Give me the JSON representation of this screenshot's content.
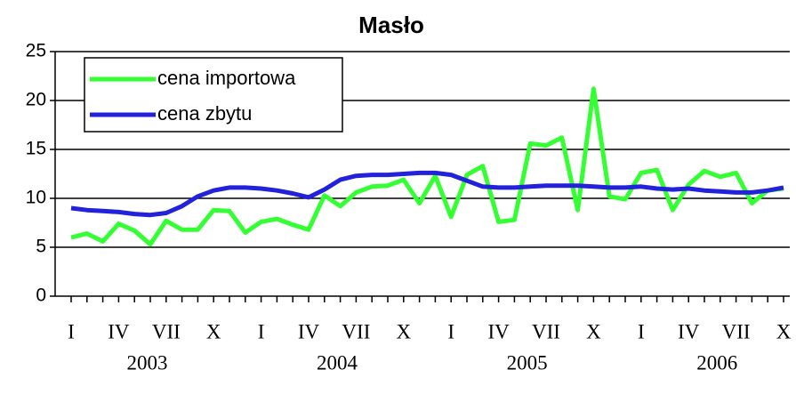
{
  "chart_data": {
    "type": "line",
    "title": "Masło",
    "categories": [
      "I",
      null,
      null,
      "IV",
      null,
      null,
      "VII",
      null,
      null,
      "X",
      null,
      null,
      "I",
      null,
      null,
      "IV",
      null,
      null,
      "VII",
      null,
      null,
      "X",
      null,
      null,
      "I",
      null,
      null,
      "IV",
      null,
      null,
      "VII",
      null,
      null,
      "X",
      null,
      null,
      "I",
      null,
      null,
      "IV",
      null,
      null,
      "VII",
      null,
      null,
      "X"
    ],
    "years": [
      "2003",
      "2004",
      "2005",
      "2006"
    ],
    "series": [
      {
        "name": "cena importowa",
        "color": "#33ff33",
        "values": [
          6.0,
          6.4,
          5.6,
          7.4,
          6.7,
          5.3,
          7.7,
          6.8,
          6.8,
          8.8,
          8.7,
          6.5,
          7.6,
          7.9,
          7.3,
          6.8,
          10.3,
          9.2,
          10.6,
          11.2,
          11.3,
          11.9,
          9.5,
          12.3,
          8.1,
          12.4,
          13.3,
          7.6,
          7.8,
          15.6,
          15.4,
          16.2,
          8.8,
          21.2,
          10.2,
          9.9,
          12.6,
          12.9,
          8.8,
          11.4,
          12.8,
          12.2,
          12.6,
          9.5,
          10.8,
          11.0
        ]
      },
      {
        "name": "cena zbytu",
        "color": "#2222dd",
        "values": [
          9.0,
          8.8,
          8.7,
          8.6,
          8.4,
          8.3,
          8.5,
          9.2,
          10.2,
          10.8,
          11.1,
          11.1,
          11.0,
          10.8,
          10.5,
          10.1,
          10.9,
          11.9,
          12.3,
          12.4,
          12.4,
          12.5,
          12.6,
          12.6,
          12.4,
          11.8,
          11.2,
          11.1,
          11.1,
          11.2,
          11.3,
          11.3,
          11.3,
          11.2,
          11.1,
          11.1,
          11.2,
          11.0,
          10.9,
          11.0,
          10.8,
          10.7,
          10.6,
          10.6,
          10.8,
          11.1
        ]
      }
    ],
    "ylim": [
      0,
      25
    ],
    "yticks": [
      0,
      5,
      10,
      15,
      20,
      25
    ],
    "grid": true,
    "legend": "upper left"
  }
}
